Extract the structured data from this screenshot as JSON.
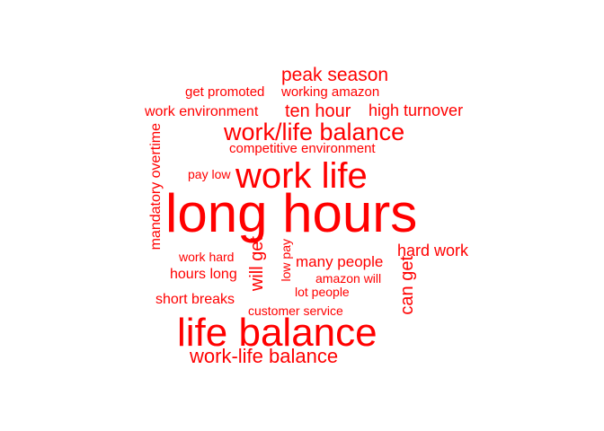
{
  "word_cloud": {
    "color": "#ff0000",
    "words": [
      "long hours",
      "life balance",
      "work life",
      "work/life balance",
      "work-life balance",
      "peak season",
      "ten hour",
      "high turnover",
      "hard work",
      "many people",
      "work environment",
      "competitive environment",
      "get promoted",
      "working amazon",
      "hours long",
      "short breaks",
      "customer service",
      "work hard",
      "pay low",
      "amazon will",
      "lot people",
      "mandatory overtime",
      "will get",
      "can get",
      "low pay"
    ]
  }
}
